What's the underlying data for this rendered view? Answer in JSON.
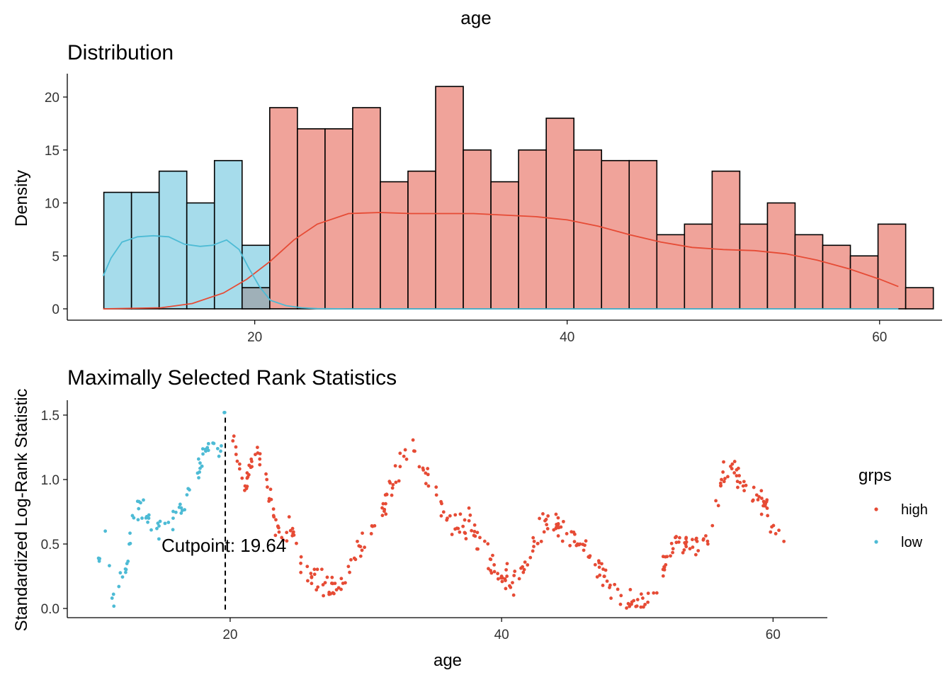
{
  "page": {
    "title": "age"
  },
  "colors": {
    "high": "#E64B35",
    "low": "#4DBBD5",
    "high_fill": "#F0A39A",
    "low_fill": "#A6DCEB",
    "overlap_fill": "#9FB0B8"
  },
  "chart_data": [
    {
      "type": "bar",
      "title": "Distribution",
      "xlabel": "",
      "ylabel": "Density",
      "xlim": [
        8,
        64
      ],
      "ylim": [
        0,
        22
      ],
      "xticks": [
        "20",
        "40",
        "60"
      ],
      "yticks": [
        "0",
        "5",
        "10",
        "15",
        "20"
      ],
      "bin_width": 1.77,
      "bins": [
        {
          "x0": 10.34,
          "value": 11,
          "group": "low"
        },
        {
          "x0": 12.11,
          "value": 11,
          "group": "low"
        },
        {
          "x0": 13.88,
          "value": 13,
          "group": "low"
        },
        {
          "x0": 15.65,
          "value": 10,
          "group": "low"
        },
        {
          "x0": 17.42,
          "value": 14,
          "group": "low"
        },
        {
          "x0": 19.19,
          "value": 6,
          "group": "low"
        },
        {
          "x0": 19.19,
          "value": 2,
          "group": "overlap"
        },
        {
          "x0": 20.96,
          "value": 19,
          "group": "high"
        },
        {
          "x0": 22.73,
          "value": 17,
          "group": "high"
        },
        {
          "x0": 24.5,
          "value": 17,
          "group": "high"
        },
        {
          "x0": 26.27,
          "value": 19,
          "group": "high"
        },
        {
          "x0": 28.04,
          "value": 12,
          "group": "high"
        },
        {
          "x0": 29.81,
          "value": 13,
          "group": "high"
        },
        {
          "x0": 31.58,
          "value": 21,
          "group": "high"
        },
        {
          "x0": 33.35,
          "value": 15,
          "group": "high"
        },
        {
          "x0": 35.12,
          "value": 12,
          "group": "high"
        },
        {
          "x0": 36.89,
          "value": 15,
          "group": "high"
        },
        {
          "x0": 38.66,
          "value": 18,
          "group": "high"
        },
        {
          "x0": 40.43,
          "value": 15,
          "group": "high"
        },
        {
          "x0": 42.2,
          "value": 14,
          "group": "high"
        },
        {
          "x0": 43.97,
          "value": 14,
          "group": "high"
        },
        {
          "x0": 45.74,
          "value": 7,
          "group": "high"
        },
        {
          "x0": 47.51,
          "value": 8,
          "group": "high"
        },
        {
          "x0": 49.28,
          "value": 13,
          "group": "high"
        },
        {
          "x0": 51.05,
          "value": 8,
          "group": "high"
        },
        {
          "x0": 52.82,
          "value": 10,
          "group": "high"
        },
        {
          "x0": 54.59,
          "value": 7,
          "group": "high"
        },
        {
          "x0": 56.36,
          "value": 6,
          "group": "high"
        },
        {
          "x0": 58.13,
          "value": 5,
          "group": "high"
        },
        {
          "x0": 59.9,
          "value": 8,
          "group": "high"
        },
        {
          "x0": 61.67,
          "value": 2,
          "group": "high"
        }
      ],
      "density_high": {
        "x": [
          10.3,
          14,
          16,
          18,
          19.5,
          21,
          22.5,
          24,
          26,
          28,
          30,
          34,
          38,
          40,
          42,
          44,
          46,
          48,
          50,
          52,
          54,
          56,
          58,
          60,
          61.2
        ],
        "y": [
          0,
          0.1,
          0.5,
          1.5,
          2.8,
          4.5,
          6.5,
          8.0,
          9.0,
          9.1,
          9.0,
          9.0,
          8.7,
          8.4,
          7.8,
          7.0,
          6.3,
          5.8,
          5.6,
          5.5,
          5.2,
          4.6,
          3.8,
          2.8,
          2.1
        ]
      },
      "density_low": {
        "x": [
          10.3,
          10.8,
          11.5,
          12.5,
          13.5,
          14.5,
          15.5,
          16.5,
          17.3,
          18.2,
          19,
          19.6,
          20.3,
          21,
          22,
          23,
          24,
          26,
          30,
          40,
          50,
          61.2
        ],
        "y": [
          3.1,
          4.8,
          6.3,
          6.8,
          6.9,
          6.8,
          6.1,
          5.9,
          6.0,
          6.5,
          5.6,
          3.9,
          2.1,
          0.8,
          0.3,
          0.1,
          0.02,
          0,
          0,
          0,
          0,
          0
        ]
      }
    },
    {
      "type": "scatter",
      "title": "Maximally Selected Rank Statistics",
      "xlabel": "age",
      "ylabel": "Standardized Log-Rank Statistic",
      "xlim": [
        8,
        64
      ],
      "ylim": [
        -0.05,
        1.6
      ],
      "xticks": [
        "20",
        "40",
        "60"
      ],
      "yticks": [
        "0.0",
        "0.5",
        "1.0",
        "1.5"
      ],
      "cutpoint": 19.64,
      "cutpoint_label": "Cutpoint: 19.64",
      "legend": {
        "title": "grps",
        "position": "right",
        "entries": [
          "high",
          "low"
        ]
      },
      "series": [
        {
          "name": "low",
          "anchors": [
            [
              10.3,
              0.39
            ],
            [
              10.8,
              0.6
            ],
            [
              11.3,
              0.08
            ],
            [
              11.8,
              0.17
            ],
            [
              12.3,
              0.28
            ],
            [
              12.8,
              0.72
            ],
            [
              13.4,
              0.82
            ],
            [
              14.0,
              0.7
            ],
            [
              14.6,
              0.62
            ],
            [
              15.2,
              0.66
            ],
            [
              15.8,
              0.7
            ],
            [
              16.4,
              0.78
            ],
            [
              17.0,
              0.92
            ],
            [
              17.6,
              1.05
            ],
            [
              18.2,
              1.22
            ],
            [
              18.8,
              1.28
            ],
            [
              19.3,
              1.22
            ],
            [
              19.6,
              1.52
            ]
          ],
          "jitter": 0.09,
          "count": 60
        },
        {
          "name": "high",
          "anchors": [
            [
              20.2,
              1.3
            ],
            [
              20.7,
              1.12
            ],
            [
              21.1,
              0.95
            ],
            [
              21.6,
              1.1
            ],
            [
              22.2,
              1.2
            ],
            [
              22.7,
              1.0
            ],
            [
              23.2,
              0.72
            ],
            [
              23.8,
              0.55
            ],
            [
              24.6,
              0.62
            ],
            [
              25.2,
              0.35
            ],
            [
              26.0,
              0.24
            ],
            [
              27.0,
              0.2
            ],
            [
              28.0,
              0.16
            ],
            [
              28.8,
              0.28
            ],
            [
              29.6,
              0.48
            ],
            [
              30.4,
              0.58
            ],
            [
              31.2,
              0.78
            ],
            [
              32.0,
              0.96
            ],
            [
              32.8,
              1.18
            ],
            [
              33.6,
              1.22
            ],
            [
              34.4,
              1.05
            ],
            [
              35.2,
              0.88
            ],
            [
              36.0,
              0.7
            ],
            [
              36.8,
              0.62
            ],
            [
              37.6,
              0.68
            ],
            [
              38.4,
              0.55
            ],
            [
              39.2,
              0.38
            ],
            [
              40.0,
              0.25
            ],
            [
              40.8,
              0.2
            ],
            [
              41.6,
              0.28
            ],
            [
              42.4,
              0.52
            ],
            [
              43.2,
              0.68
            ],
            [
              44.0,
              0.62
            ],
            [
              44.8,
              0.58
            ],
            [
              45.6,
              0.5
            ],
            [
              46.4,
              0.4
            ],
            [
              47.2,
              0.32
            ],
            [
              48.0,
              0.18
            ],
            [
              48.8,
              0.1
            ],
            [
              49.6,
              0.05
            ],
            [
              50.4,
              0.08
            ],
            [
              51.2,
              0.12
            ],
            [
              52.0,
              0.3
            ],
            [
              52.8,
              0.55
            ],
            [
              53.6,
              0.48
            ],
            [
              54.4,
              0.52
            ],
            [
              55.2,
              0.5
            ],
            [
              56.2,
              1.0
            ],
            [
              57.0,
              1.12
            ],
            [
              57.8,
              0.95
            ],
            [
              58.8,
              0.88
            ],
            [
              59.6,
              0.72
            ],
            [
              60.2,
              0.58
            ],
            [
              60.8,
              0.52
            ]
          ],
          "jitter": 0.09,
          "count": 330
        }
      ]
    }
  ]
}
